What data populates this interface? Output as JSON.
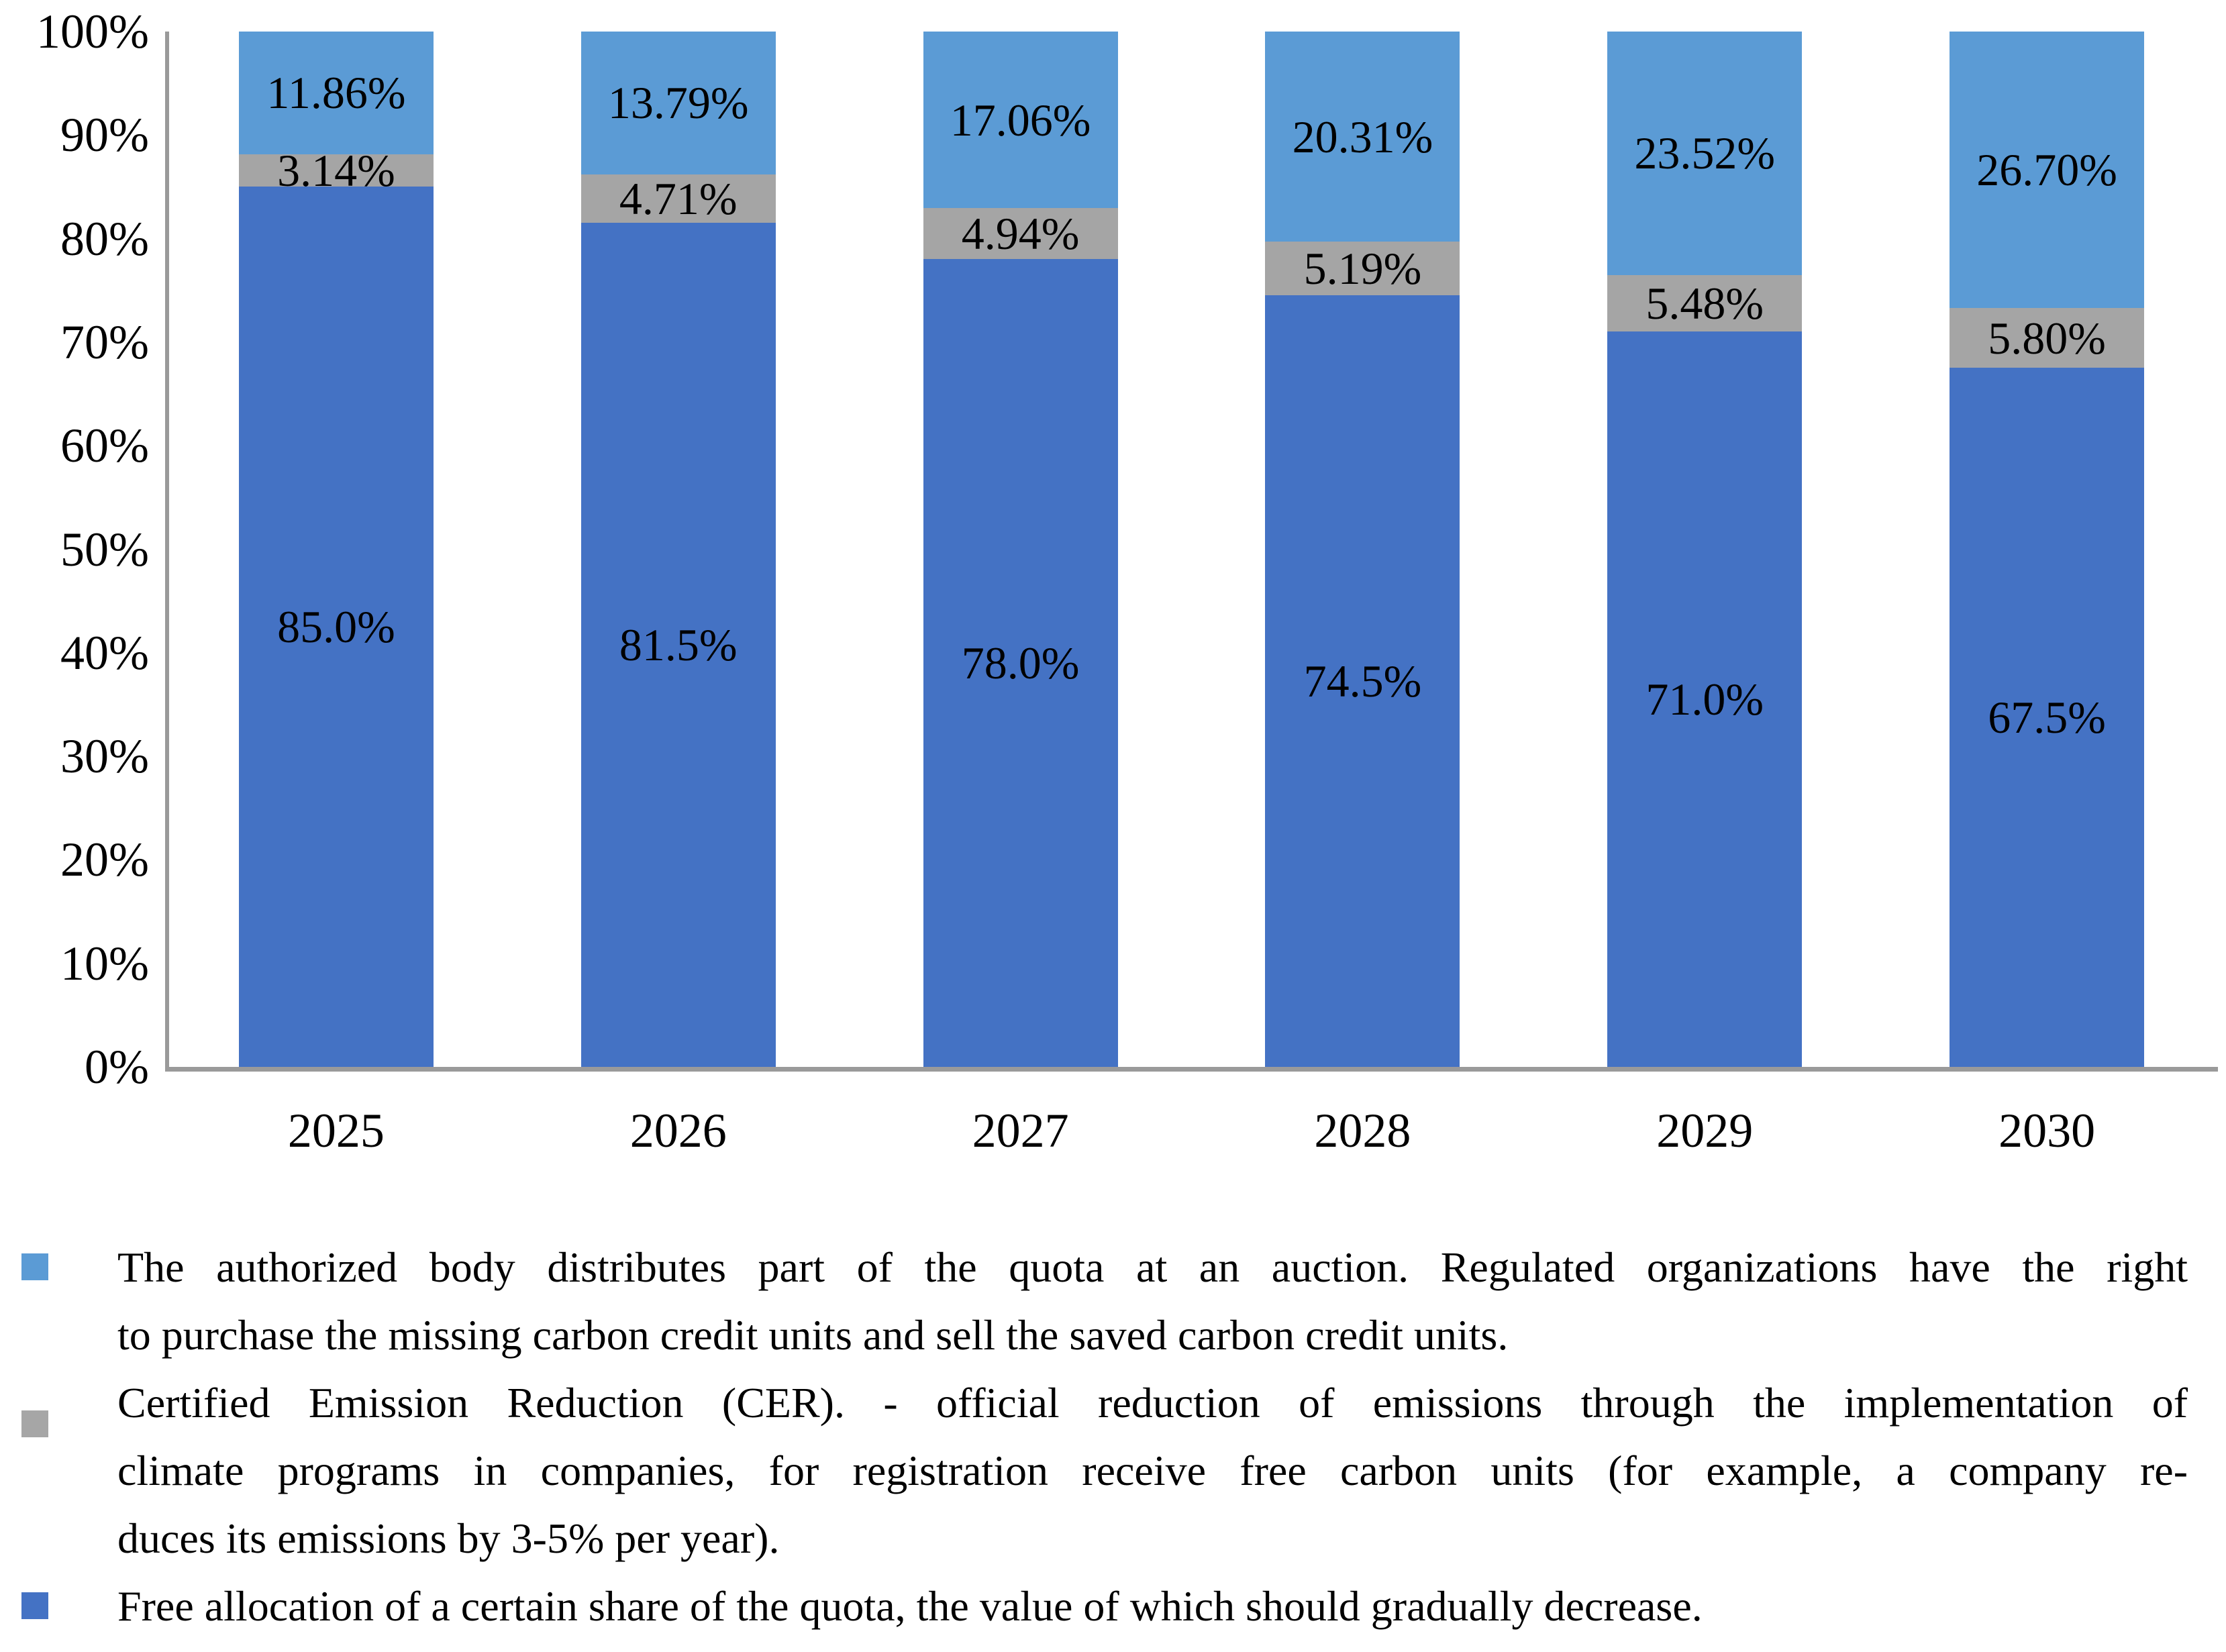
{
  "chart_data": {
    "type": "bar",
    "stacked": true,
    "categories": [
      "2025",
      "2026",
      "2027",
      "2028",
      "2029",
      "2030"
    ],
    "series": [
      {
        "name": "free-allocation",
        "color": "#4472C4",
        "values": [
          85.0,
          81.5,
          78.0,
          74.5,
          71.0,
          67.5
        ],
        "labels": [
          "85.0%",
          "81.5%",
          "78.0%",
          "74.5%",
          "71.0%",
          "67.5%"
        ]
      },
      {
        "name": "certified-emission-reduction",
        "color": "#A5A5A5",
        "values": [
          3.14,
          4.71,
          4.94,
          5.19,
          5.48,
          5.8
        ],
        "labels": [
          "3.14%",
          "4.71%",
          "4.94%",
          "5.19%",
          "5.48%",
          "5.80%"
        ]
      },
      {
        "name": "auction",
        "color": "#5B9BD5",
        "values": [
          11.86,
          13.79,
          17.06,
          20.31,
          23.52,
          26.7
        ],
        "labels": [
          "11.86%",
          "13.79%",
          "17.06%",
          "20.31%",
          "23.52%",
          "26.70%"
        ]
      }
    ],
    "title": "",
    "xlabel": "",
    "ylabel": "",
    "ylim": [
      0,
      100
    ],
    "yticks": [
      "0%",
      "10%",
      "20%",
      "30%",
      "40%",
      "50%",
      "60%",
      "70%",
      "80%",
      "90%",
      "100%"
    ],
    "grid": false,
    "legend_position": "bottom",
    "axis_color": "#9A9A9A",
    "label_color": "#000000"
  },
  "legend": {
    "items": [
      {
        "series": "auction",
        "color": "#5B9BD5",
        "lines": [
          "The authorized body distributes part of the quota at an auction. Regulated organizations have the right",
          "to purchase the missing carbon credit units and sell the saved carbon credit units."
        ]
      },
      {
        "series": "certified-emission-reduction",
        "color": "#A6A6A6",
        "lines": [
          "Certified Emission Reduction (CER). - official reduction of emissions through the implementation of",
          "climate programs in companies, for registration receive free carbon units (for example, a company re-",
          "duces its emissions by 3-5% per year)."
        ]
      },
      {
        "series": "free-allocation",
        "color": "#4472C4",
        "lines": [
          "Free allocation of a certain share of the quota, the value of which should gradually decrease."
        ]
      }
    ]
  }
}
